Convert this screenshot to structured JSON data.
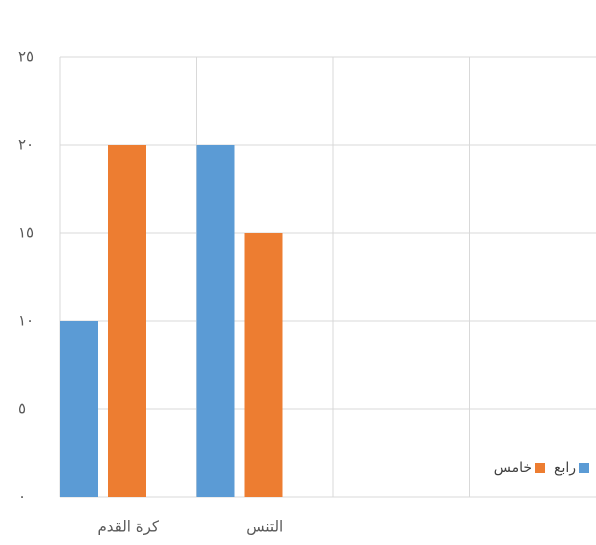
{
  "chart_data": {
    "type": "bar",
    "categories": [
      "كرة القدم",
      "التنس",
      null,
      null
    ],
    "series": [
      {
        "name": "رابع",
        "color": "#5b9bd5",
        "values": [
          10,
          20,
          null,
          null
        ]
      },
      {
        "name": "خامس",
        "color": "#ed7d31",
        "values": [
          20,
          15,
          null,
          null
        ]
      }
    ],
    "ylim": [
      0,
      25
    ],
    "yticks": [
      {
        "value": 0,
        "label": "٠"
      },
      {
        "value": 5,
        "label": "٥"
      },
      {
        "value": 10,
        "label": "١٠"
      },
      {
        "value": 15,
        "label": "١٥"
      },
      {
        "value": 20,
        "label": "٢٠"
      },
      {
        "value": 25,
        "label": "٢٥"
      }
    ],
    "grid": true,
    "legend": "lower right"
  }
}
